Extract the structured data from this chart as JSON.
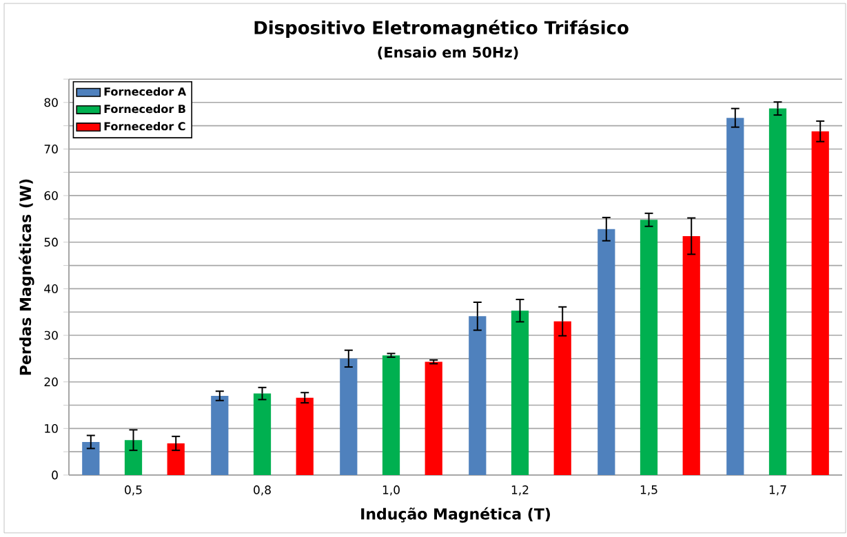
{
  "chart_data": {
    "type": "bar",
    "title": "Dispositivo Eletromagnético Trifásico",
    "subtitle": "(Ensaio em 50Hz)",
    "xlabel": "Indução Magnética (T)",
    "ylabel": "Perdas Magnéticas (W)",
    "categories": [
      "0,5",
      "0,8",
      "1,0",
      "1,2",
      "1,5",
      "1,7"
    ],
    "series": [
      {
        "name": "Fornecedor A",
        "color": "#4f81bd",
        "values": [
          7.1,
          17.0,
          25.0,
          34.1,
          52.8,
          76.7
        ],
        "errors": [
          1.4,
          1.0,
          1.8,
          3.0,
          2.5,
          2.0
        ]
      },
      {
        "name": "Fornecedor B",
        "color": "#00b050",
        "values": [
          7.5,
          17.5,
          25.7,
          35.3,
          54.8,
          78.7
        ],
        "errors": [
          2.2,
          1.3,
          0.4,
          2.4,
          1.4,
          1.4
        ]
      },
      {
        "name": "Fornecedor C",
        "color": "#ff0000",
        "values": [
          6.8,
          16.6,
          24.3,
          33.0,
          51.3,
          73.8
        ],
        "errors": [
          1.5,
          1.1,
          0.4,
          3.1,
          3.9,
          2.2
        ]
      }
    ],
    "ylim": [
      0,
      85
    ],
    "yticks": [
      0,
      {
        "value": 5,
        "label": null
      },
      10,
      {
        "value": 15,
        "label": null
      },
      20,
      {
        "value": 25,
        "label": null
      },
      30,
      {
        "value": 35,
        "label": null
      },
      40,
      {
        "value": 45,
        "label": null
      },
      50,
      {
        "value": 55,
        "label": null
      },
      60,
      {
        "value": 65,
        "label": null
      },
      70,
      {
        "value": 75,
        "label": null
      },
      80,
      {
        "value": 85,
        "label": null
      }
    ],
    "grid": "y",
    "legend": "top left"
  }
}
